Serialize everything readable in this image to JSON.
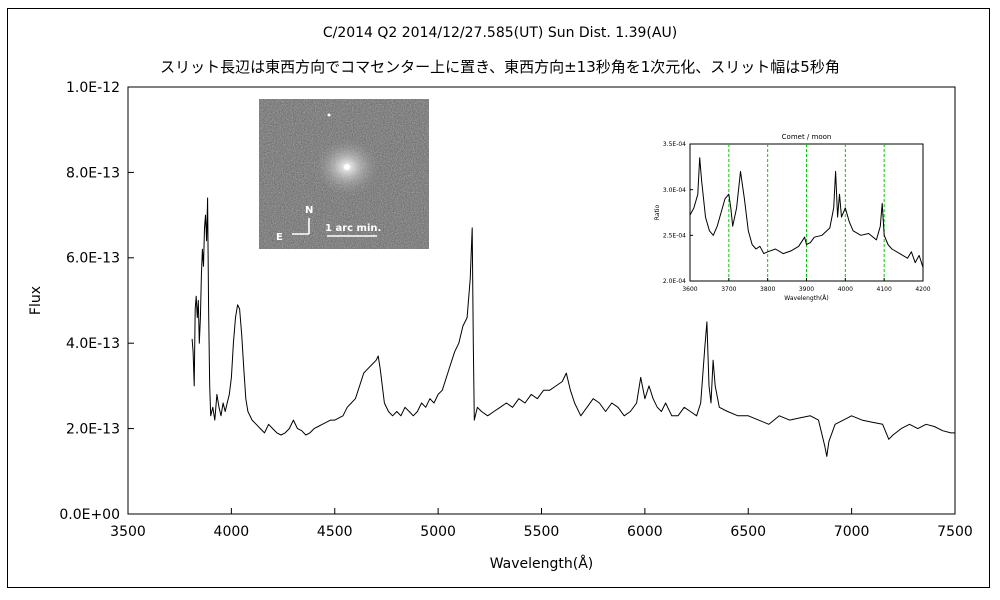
{
  "title_line1": "C/2014 Q2     2014/12/27.585(UT)     Sun Dist. 1.39(AU)",
  "title_line2": "スリット長辺は東西方向でコマセンター上に置き、東西方向±13秒角を1次元化、スリット幅は5秒角",
  "photo": {
    "compass_n": "N",
    "compass_e": "E",
    "scale_label": "1 arc min."
  },
  "chart_data": [
    {
      "type": "line",
      "xlabel": "Wavelength(Å)",
      "ylabel": "Flux",
      "xlim": [
        3500,
        7500
      ],
      "ylim": [
        0,
        1e-12
      ],
      "xticks": [
        "3500",
        "4000",
        "4500",
        "5000",
        "5500",
        "6000",
        "6500",
        "7000",
        "7500"
      ],
      "yticks": [
        "0.0E+00",
        "2.0E-13",
        "4.0E-13",
        "6.0E-13",
        "8.0E-13",
        "1.0E-12"
      ],
      "grid": false,
      "series": [
        {
          "color": "#000000",
          "points": [
            [
              3810,
              4.1e-13
            ],
            [
              3815,
              3.8e-13
            ],
            [
              3820,
              3e-13
            ],
            [
              3825,
              4.8e-13
            ],
            [
              3830,
              5.1e-13
            ],
            [
              3835,
              4.6e-13
            ],
            [
              3840,
              5e-13
            ],
            [
              3845,
              4e-13
            ],
            [
              3850,
              4.6e-13
            ],
            [
              3855,
              5.6e-13
            ],
            [
              3860,
              6.2e-13
            ],
            [
              3865,
              5.8e-13
            ],
            [
              3870,
              6.7e-13
            ],
            [
              3875,
              7e-13
            ],
            [
              3880,
              6.4e-13
            ],
            [
              3885,
              7.4e-13
            ],
            [
              3890,
              4.8e-13
            ],
            [
              3895,
              3e-13
            ],
            [
              3900,
              2.3e-13
            ],
            [
              3910,
              2.5e-13
            ],
            [
              3920,
              2.2e-13
            ],
            [
              3930,
              2.8e-13
            ],
            [
              3940,
              2.5e-13
            ],
            [
              3950,
              2.3e-13
            ],
            [
              3960,
              2.6e-13
            ],
            [
              3970,
              2.4e-13
            ],
            [
              3980,
              2.6e-13
            ],
            [
              3990,
              2.8e-13
            ],
            [
              4000,
              3.2e-13
            ],
            [
              4010,
              4e-13
            ],
            [
              4020,
              4.6e-13
            ],
            [
              4030,
              4.9e-13
            ],
            [
              4040,
              4.8e-13
            ],
            [
              4050,
              4.2e-13
            ],
            [
              4060,
              3.4e-13
            ],
            [
              4070,
              2.7e-13
            ],
            [
              4080,
              2.4e-13
            ],
            [
              4100,
              2.2e-13
            ],
            [
              4120,
              2.1e-13
            ],
            [
              4140,
              2e-13
            ],
            [
              4160,
              1.9e-13
            ],
            [
              4180,
              2.1e-13
            ],
            [
              4200,
              2e-13
            ],
            [
              4220,
              1.9e-13
            ],
            [
              4240,
              1.85e-13
            ],
            [
              4260,
              1.9e-13
            ],
            [
              4280,
              2e-13
            ],
            [
              4300,
              2.2e-13
            ],
            [
              4320,
              2e-13
            ],
            [
              4340,
              1.95e-13
            ],
            [
              4360,
              1.85e-13
            ],
            [
              4380,
              1.9e-13
            ],
            [
              4400,
              2e-13
            ],
            [
              4420,
              2.05e-13
            ],
            [
              4440,
              2.1e-13
            ],
            [
              4460,
              2.15e-13
            ],
            [
              4480,
              2.2e-13
            ],
            [
              4500,
              2.2e-13
            ],
            [
              4520,
              2.25e-13
            ],
            [
              4540,
              2.3e-13
            ],
            [
              4560,
              2.5e-13
            ],
            [
              4580,
              2.6e-13
            ],
            [
              4600,
              2.7e-13
            ],
            [
              4620,
              3e-13
            ],
            [
              4640,
              3.3e-13
            ],
            [
              4660,
              3.4e-13
            ],
            [
              4680,
              3.5e-13
            ],
            [
              4700,
              3.6e-13
            ],
            [
              4710,
              3.7e-13
            ],
            [
              4720,
              3.4e-13
            ],
            [
              4730,
              3e-13
            ],
            [
              4740,
              2.6e-13
            ],
            [
              4760,
              2.4e-13
            ],
            [
              4780,
              2.3e-13
            ],
            [
              4800,
              2.4e-13
            ],
            [
              4820,
              2.3e-13
            ],
            [
              4840,
              2.5e-13
            ],
            [
              4860,
              2.4e-13
            ],
            [
              4880,
              2.3e-13
            ],
            [
              4900,
              2.4e-13
            ],
            [
              4920,
              2.6e-13
            ],
            [
              4940,
              2.5e-13
            ],
            [
              4960,
              2.7e-13
            ],
            [
              4980,
              2.6e-13
            ],
            [
              5000,
              2.8e-13
            ],
            [
              5020,
              2.9e-13
            ],
            [
              5040,
              3.2e-13
            ],
            [
              5060,
              3.5e-13
            ],
            [
              5080,
              3.8e-13
            ],
            [
              5100,
              4e-13
            ],
            [
              5120,
              4.4e-13
            ],
            [
              5140,
              4.6e-13
            ],
            [
              5155,
              5.5e-13
            ],
            [
              5165,
              6.7e-13
            ],
            [
              5170,
              4e-13
            ],
            [
              5175,
              2.2e-13
            ],
            [
              5190,
              2.5e-13
            ],
            [
              5210,
              2.4e-13
            ],
            [
              5240,
              2.3e-13
            ],
            [
              5270,
              2.4e-13
            ],
            [
              5300,
              2.5e-13
            ],
            [
              5330,
              2.6e-13
            ],
            [
              5360,
              2.5e-13
            ],
            [
              5390,
              2.7e-13
            ],
            [
              5420,
              2.6e-13
            ],
            [
              5450,
              2.8e-13
            ],
            [
              5480,
              2.7e-13
            ],
            [
              5510,
              2.9e-13
            ],
            [
              5540,
              2.9e-13
            ],
            [
              5570,
              3e-13
            ],
            [
              5600,
              3.1e-13
            ],
            [
              5620,
              3.3e-13
            ],
            [
              5640,
              2.9e-13
            ],
            [
              5660,
              2.6e-13
            ],
            [
              5690,
              2.3e-13
            ],
            [
              5720,
              2.5e-13
            ],
            [
              5750,
              2.7e-13
            ],
            [
              5780,
              2.6e-13
            ],
            [
              5810,
              2.4e-13
            ],
            [
              5840,
              2.6e-13
            ],
            [
              5870,
              2.5e-13
            ],
            [
              5900,
              2.3e-13
            ],
            [
              5930,
              2.4e-13
            ],
            [
              5960,
              2.6e-13
            ],
            [
              5980,
              3.2e-13
            ],
            [
              6000,
              2.7e-13
            ],
            [
              6020,
              3e-13
            ],
            [
              6040,
              2.7e-13
            ],
            [
              6060,
              2.5e-13
            ],
            [
              6080,
              2.4e-13
            ],
            [
              6100,
              2.6e-13
            ],
            [
              6130,
              2.3e-13
            ],
            [
              6160,
              2.3e-13
            ],
            [
              6190,
              2.5e-13
            ],
            [
              6220,
              2.4e-13
            ],
            [
              6250,
              2.3e-13
            ],
            [
              6270,
              2.6e-13
            ],
            [
              6290,
              3.9e-13
            ],
            [
              6300,
              4.5e-13
            ],
            [
              6310,
              3e-13
            ],
            [
              6320,
              2.6e-13
            ],
            [
              6330,
              3.6e-13
            ],
            [
              6340,
              3e-13
            ],
            [
              6360,
              2.5e-13
            ],
            [
              6400,
              2.4e-13
            ],
            [
              6450,
              2.3e-13
            ],
            [
              6500,
              2.3e-13
            ],
            [
              6550,
              2.2e-13
            ],
            [
              6600,
              2.1e-13
            ],
            [
              6650,
              2.3e-13
            ],
            [
              6700,
              2.2e-13
            ],
            [
              6750,
              2.25e-13
            ],
            [
              6800,
              2.3e-13
            ],
            [
              6840,
              2.2e-13
            ],
            [
              6870,
              1.6e-13
            ],
            [
              6880,
              1.35e-13
            ],
            [
              6890,
              1.7e-13
            ],
            [
              6920,
              2.1e-13
            ],
            [
              6960,
              2.2e-13
            ],
            [
              7000,
              2.3e-13
            ],
            [
              7050,
              2.2e-13
            ],
            [
              7100,
              2.15e-13
            ],
            [
              7150,
              2.1e-13
            ],
            [
              7180,
              1.75e-13
            ],
            [
              7200,
              1.85e-13
            ],
            [
              7240,
              2e-13
            ],
            [
              7280,
              2.1e-13
            ],
            [
              7320,
              2e-13
            ],
            [
              7360,
              2.1e-13
            ],
            [
              7400,
              2.05e-13
            ],
            [
              7440,
              1.95e-13
            ],
            [
              7480,
              1.9e-13
            ],
            [
              7500,
              1.9e-13
            ]
          ]
        }
      ]
    },
    {
      "type": "line",
      "title": "Comet / moon",
      "xlabel": "Wavelength(Å)",
      "ylabel": "Ratio",
      "xlim": [
        3600,
        4200
      ],
      "ylim": [
        0.0002,
        0.00035
      ],
      "xticks": [
        "3600",
        "3700",
        "3800",
        "3900",
        "4000",
        "4100",
        "4200"
      ],
      "yticks": [
        "2.0E-04",
        "2.5E-04",
        "3.0E-04",
        "3.5E-04"
      ],
      "vlines": [
        3700,
        3800,
        3900,
        4000,
        4100
      ],
      "vline_color": "#00cc00",
      "series": [
        {
          "color": "#000000",
          "points": [
            [
              3600,
              0.000272
            ],
            [
              3610,
              0.00028
            ],
            [
              3620,
              0.000295
            ],
            [
              3625,
              0.000335
            ],
            [
              3630,
              0.00031
            ],
            [
              3640,
              0.00027
            ],
            [
              3650,
              0.000255
            ],
            [
              3660,
              0.00025
            ],
            [
              3670,
              0.00026
            ],
            [
              3680,
              0.000275
            ],
            [
              3690,
              0.00029
            ],
            [
              3700,
              0.000295
            ],
            [
              3705,
              0.00028
            ],
            [
              3710,
              0.00026
            ],
            [
              3720,
              0.00028
            ],
            [
              3730,
              0.00032
            ],
            [
              3740,
              0.00029
            ],
            [
              3750,
              0.000255
            ],
            [
              3760,
              0.00024
            ],
            [
              3770,
              0.000235
            ],
            [
              3780,
              0.000238
            ],
            [
              3790,
              0.00023
            ],
            [
              3800,
              0.000232
            ],
            [
              3820,
              0.000235
            ],
            [
              3840,
              0.00023
            ],
            [
              3860,
              0.000233
            ],
            [
              3880,
              0.000238
            ],
            [
              3895,
              0.000248
            ],
            [
              3900,
              0.00024
            ],
            [
              3910,
              0.000242
            ],
            [
              3920,
              0.000248
            ],
            [
              3940,
              0.00025
            ],
            [
              3960,
              0.000258
            ],
            [
              3970,
              0.00028
            ],
            [
              3975,
              0.00032
            ],
            [
              3980,
              0.00027
            ],
            [
              3985,
              0.000295
            ],
            [
              3990,
              0.00027
            ],
            [
              4000,
              0.00028
            ],
            [
              4010,
              0.000265
            ],
            [
              4020,
              0.000255
            ],
            [
              4040,
              0.00025
            ],
            [
              4060,
              0.000252
            ],
            [
              4080,
              0.000245
            ],
            [
              4090,
              0.00026
            ],
            [
              4095,
              0.000285
            ],
            [
              4100,
              0.00025
            ],
            [
              4110,
              0.00024
            ],
            [
              4120,
              0.000235
            ],
            [
              4140,
              0.00023
            ],
            [
              4160,
              0.000225
            ],
            [
              4170,
              0.000232
            ],
            [
              4180,
              0.00022
            ],
            [
              4190,
              0.000228
            ],
            [
              4200,
              0.000215
            ]
          ]
        }
      ]
    }
  ]
}
